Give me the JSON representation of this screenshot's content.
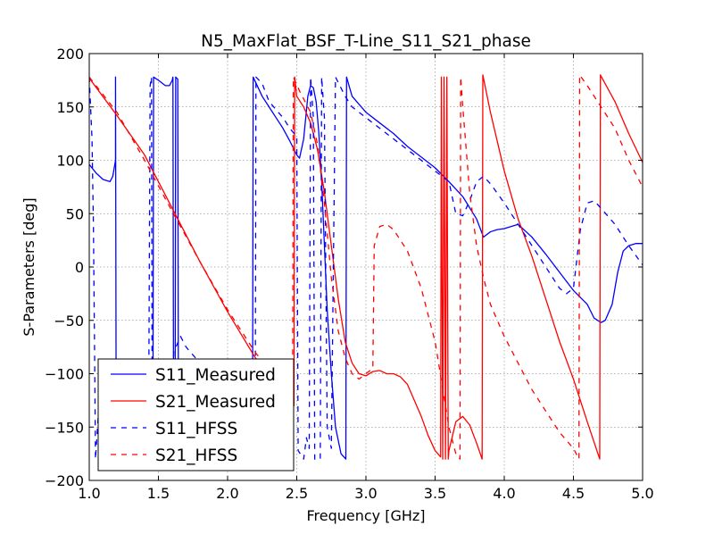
{
  "chart_data": {
    "type": "line",
    "title": "N5_MaxFlat_BSF_T-Line_S11_S21_phase",
    "xlabel": "Frequency [GHz]",
    "ylabel": "S-Parameters [deg]",
    "xlim": [
      1.0,
      5.0
    ],
    "ylim": [
      -200,
      200
    ],
    "x_ticks": [
      "1.0",
      "1.5",
      "2.0",
      "2.5",
      "3.0",
      "3.5",
      "4.0",
      "4.5",
      "5.0"
    ],
    "y_ticks": [
      "200",
      "150",
      "100",
      "50",
      "0",
      "−50",
      "−100",
      "−150",
      "−200"
    ],
    "grid": true,
    "legend_position": "lower-left",
    "series": [
      {
        "name": "S11_Measured",
        "color": "#0000ff",
        "style": "solid",
        "points": [
          [
            1.0,
            96
          ],
          [
            1.05,
            88
          ],
          [
            1.1,
            82
          ],
          [
            1.15,
            80
          ],
          [
            1.17,
            85
          ],
          [
            1.19,
            100
          ],
          [
            1.19,
            178
          ],
          [
            1.195,
            -180
          ],
          [
            1.46,
            -180
          ],
          [
            1.465,
            178
          ],
          [
            1.5,
            175
          ],
          [
            1.55,
            170
          ],
          [
            1.58,
            170
          ],
          [
            1.6,
            175
          ],
          [
            1.605,
            178
          ],
          [
            1.61,
            -180
          ],
          [
            1.62,
            -180
          ],
          [
            1.625,
            178
          ],
          [
            1.64,
            176
          ],
          [
            1.645,
            -180
          ],
          [
            2.18,
            -180
          ],
          [
            2.185,
            178
          ],
          [
            2.25,
            160
          ],
          [
            2.3,
            150
          ],
          [
            2.35,
            140
          ],
          [
            2.4,
            130
          ],
          [
            2.45,
            118
          ],
          [
            2.5,
            105
          ],
          [
            2.52,
            102
          ],
          [
            2.55,
            120
          ],
          [
            2.58,
            160
          ],
          [
            2.6,
            170
          ],
          [
            2.62,
            168
          ],
          [
            2.64,
            155
          ],
          [
            2.66,
            125
          ],
          [
            2.68,
            80
          ],
          [
            2.7,
            20
          ],
          [
            2.72,
            -40
          ],
          [
            2.75,
            -100
          ],
          [
            2.78,
            -150
          ],
          [
            2.82,
            -175
          ],
          [
            2.855,
            -180
          ],
          [
            2.86,
            178
          ],
          [
            2.9,
            160
          ],
          [
            3.0,
            145
          ],
          [
            3.1,
            135
          ],
          [
            3.2,
            125
          ],
          [
            3.3,
            113
          ],
          [
            3.4,
            103
          ],
          [
            3.5,
            93
          ],
          [
            3.6,
            80
          ],
          [
            3.7,
            66
          ],
          [
            3.8,
            45
          ],
          [
            3.85,
            28
          ],
          [
            3.9,
            33
          ],
          [
            3.95,
            35
          ],
          [
            4.0,
            36
          ],
          [
            4.05,
            38
          ],
          [
            4.1,
            40
          ],
          [
            4.2,
            28
          ],
          [
            4.3,
            12
          ],
          [
            4.4,
            -5
          ],
          [
            4.5,
            -22
          ],
          [
            4.6,
            -35
          ],
          [
            4.65,
            -48
          ],
          [
            4.7,
            -52
          ],
          [
            4.73,
            -50
          ],
          [
            4.78,
            -35
          ],
          [
            4.82,
            -5
          ],
          [
            4.86,
            15
          ],
          [
            4.9,
            20
          ],
          [
            4.95,
            22
          ],
          [
            5.0,
            22
          ]
        ]
      },
      {
        "name": "S21_Measured",
        "color": "#ff0000",
        "style": "solid",
        "points": [
          [
            1.0,
            177
          ],
          [
            1.2,
            142
          ],
          [
            1.4,
            105
          ],
          [
            1.6,
            55
          ],
          [
            1.8,
            5
          ],
          [
            2.0,
            -42
          ],
          [
            2.2,
            -85
          ],
          [
            2.4,
            -115
          ],
          [
            2.48,
            -130
          ],
          [
            2.485,
            178
          ],
          [
            2.5,
            160
          ],
          [
            2.55,
            150
          ],
          [
            2.6,
            135
          ],
          [
            2.65,
            110
          ],
          [
            2.7,
            70
          ],
          [
            2.75,
            20
          ],
          [
            2.8,
            -30
          ],
          [
            2.85,
            -70
          ],
          [
            2.9,
            -90
          ],
          [
            2.95,
            -100
          ],
          [
            3.0,
            -102
          ],
          [
            3.05,
            -98
          ],
          [
            3.1,
            -97
          ],
          [
            3.15,
            -100
          ],
          [
            3.2,
            -100
          ],
          [
            3.25,
            -103
          ],
          [
            3.3,
            -110
          ],
          [
            3.35,
            -125
          ],
          [
            3.4,
            -140
          ],
          [
            3.45,
            -158
          ],
          [
            3.5,
            -172
          ],
          [
            3.54,
            -178
          ],
          [
            3.545,
            178
          ],
          [
            3.555,
            -180
          ],
          [
            3.565,
            178
          ],
          [
            3.575,
            -180
          ],
          [
            3.585,
            178
          ],
          [
            3.595,
            -180
          ],
          [
            3.6,
            -172
          ],
          [
            3.65,
            -145
          ],
          [
            3.7,
            -140
          ],
          [
            3.75,
            -148
          ],
          [
            3.8,
            -165
          ],
          [
            3.84,
            -180
          ],
          [
            3.845,
            180
          ],
          [
            3.9,
            145
          ],
          [
            4.0,
            90
          ],
          [
            4.1,
            45
          ],
          [
            4.2,
            10
          ],
          [
            4.3,
            -30
          ],
          [
            4.4,
            -70
          ],
          [
            4.5,
            -105
          ],
          [
            4.6,
            -145
          ],
          [
            4.69,
            -180
          ],
          [
            4.695,
            180
          ],
          [
            4.8,
            155
          ],
          [
            4.9,
            125
          ],
          [
            5.0,
            98
          ]
        ]
      },
      {
        "name": "S11_HFSS",
        "color": "#0000ff",
        "style": "dashed",
        "points": [
          [
            1.0,
            178
          ],
          [
            1.02,
            120
          ],
          [
            1.03,
            40
          ],
          [
            1.04,
            -100
          ],
          [
            1.045,
            -180
          ],
          [
            1.05,
            -170
          ],
          [
            1.06,
            -150
          ],
          [
            1.07,
            -130
          ],
          [
            1.075,
            -125
          ],
          [
            1.43,
            -125
          ],
          [
            1.44,
            170
          ],
          [
            1.45,
            178
          ],
          [
            1.455,
            -180
          ],
          [
            1.6,
            -180
          ],
          [
            1.61,
            -80
          ],
          [
            1.66,
            -65
          ],
          [
            1.7,
            -75
          ],
          [
            1.8,
            -90
          ],
          [
            1.9,
            -100
          ],
          [
            2.0,
            -110
          ],
          [
            2.1,
            -125
          ],
          [
            2.15,
            -130
          ],
          [
            2.2,
            -140
          ],
          [
            2.205,
            178
          ],
          [
            2.25,
            172
          ],
          [
            2.3,
            155
          ],
          [
            2.4,
            140
          ],
          [
            2.45,
            130
          ],
          [
            2.5,
            122
          ],
          [
            2.51,
            -172
          ],
          [
            2.55,
            -180
          ],
          [
            2.57,
            -160
          ],
          [
            2.59,
            -170
          ],
          [
            2.6,
            178
          ],
          [
            2.62,
            140
          ],
          [
            2.63,
            -180
          ],
          [
            2.67,
            -180
          ],
          [
            2.68,
            178
          ],
          [
            2.7,
            140
          ],
          [
            2.72,
            -150
          ],
          [
            2.75,
            -170
          ],
          [
            2.78,
            178
          ],
          [
            2.85,
            160
          ],
          [
            2.9,
            150
          ],
          [
            3.0,
            140
          ],
          [
            3.1,
            130
          ],
          [
            3.2,
            120
          ],
          [
            3.3,
            110
          ],
          [
            3.4,
            100
          ],
          [
            3.5,
            90
          ],
          [
            3.6,
            80
          ],
          [
            3.65,
            50
          ],
          [
            3.7,
            48
          ],
          [
            3.75,
            62
          ],
          [
            3.8,
            80
          ],
          [
            3.85,
            85
          ],
          [
            3.9,
            78
          ],
          [
            4.0,
            60
          ],
          [
            4.1,
            40
          ],
          [
            4.2,
            20
          ],
          [
            4.3,
            0
          ],
          [
            4.4,
            -20
          ],
          [
            4.45,
            -25
          ],
          [
            4.5,
            -20
          ],
          [
            4.55,
            35
          ],
          [
            4.6,
            60
          ],
          [
            4.65,
            62
          ],
          [
            4.7,
            55
          ],
          [
            4.8,
            40
          ],
          [
            4.9,
            20
          ],
          [
            5.0,
            2
          ]
        ]
      },
      {
        "name": "S21_HFSS",
        "color": "#ff0000",
        "style": "dashed",
        "points": [
          [
            1.0,
            178
          ],
          [
            1.2,
            145
          ],
          [
            1.4,
            100
          ],
          [
            1.6,
            52
          ],
          [
            1.8,
            5
          ],
          [
            2.0,
            -40
          ],
          [
            2.2,
            -80
          ],
          [
            2.4,
            -112
          ],
          [
            2.47,
            -125
          ],
          [
            2.475,
            178
          ],
          [
            2.52,
            165
          ],
          [
            2.6,
            145
          ],
          [
            2.65,
            115
          ],
          [
            2.7,
            60
          ],
          [
            2.75,
            -10
          ],
          [
            2.8,
            -60
          ],
          [
            2.85,
            -85
          ],
          [
            2.9,
            -100
          ],
          [
            2.95,
            -105
          ],
          [
            3.0,
            -100
          ],
          [
            3.05,
            -95
          ],
          [
            3.06,
            20
          ],
          [
            3.1,
            38
          ],
          [
            3.15,
            40
          ],
          [
            3.2,
            35
          ],
          [
            3.3,
            15
          ],
          [
            3.4,
            -20
          ],
          [
            3.5,
            -70
          ],
          [
            3.55,
            -110
          ],
          [
            3.6,
            -150
          ],
          [
            3.65,
            -175
          ],
          [
            3.68,
            -180
          ],
          [
            3.685,
            178
          ],
          [
            3.7,
            150
          ],
          [
            3.75,
            70
          ],
          [
            3.8,
            20
          ],
          [
            3.85,
            -10
          ],
          [
            3.9,
            -35
          ],
          [
            4.0,
            -65
          ],
          [
            4.1,
            -90
          ],
          [
            4.2,
            -115
          ],
          [
            4.3,
            -135
          ],
          [
            4.4,
            -155
          ],
          [
            4.5,
            -170
          ],
          [
            4.54,
            -180
          ],
          [
            4.545,
            180
          ],
          [
            4.6,
            170
          ],
          [
            4.7,
            150
          ],
          [
            4.8,
            130
          ],
          [
            4.9,
            100
          ],
          [
            5.0,
            75
          ]
        ]
      }
    ]
  }
}
